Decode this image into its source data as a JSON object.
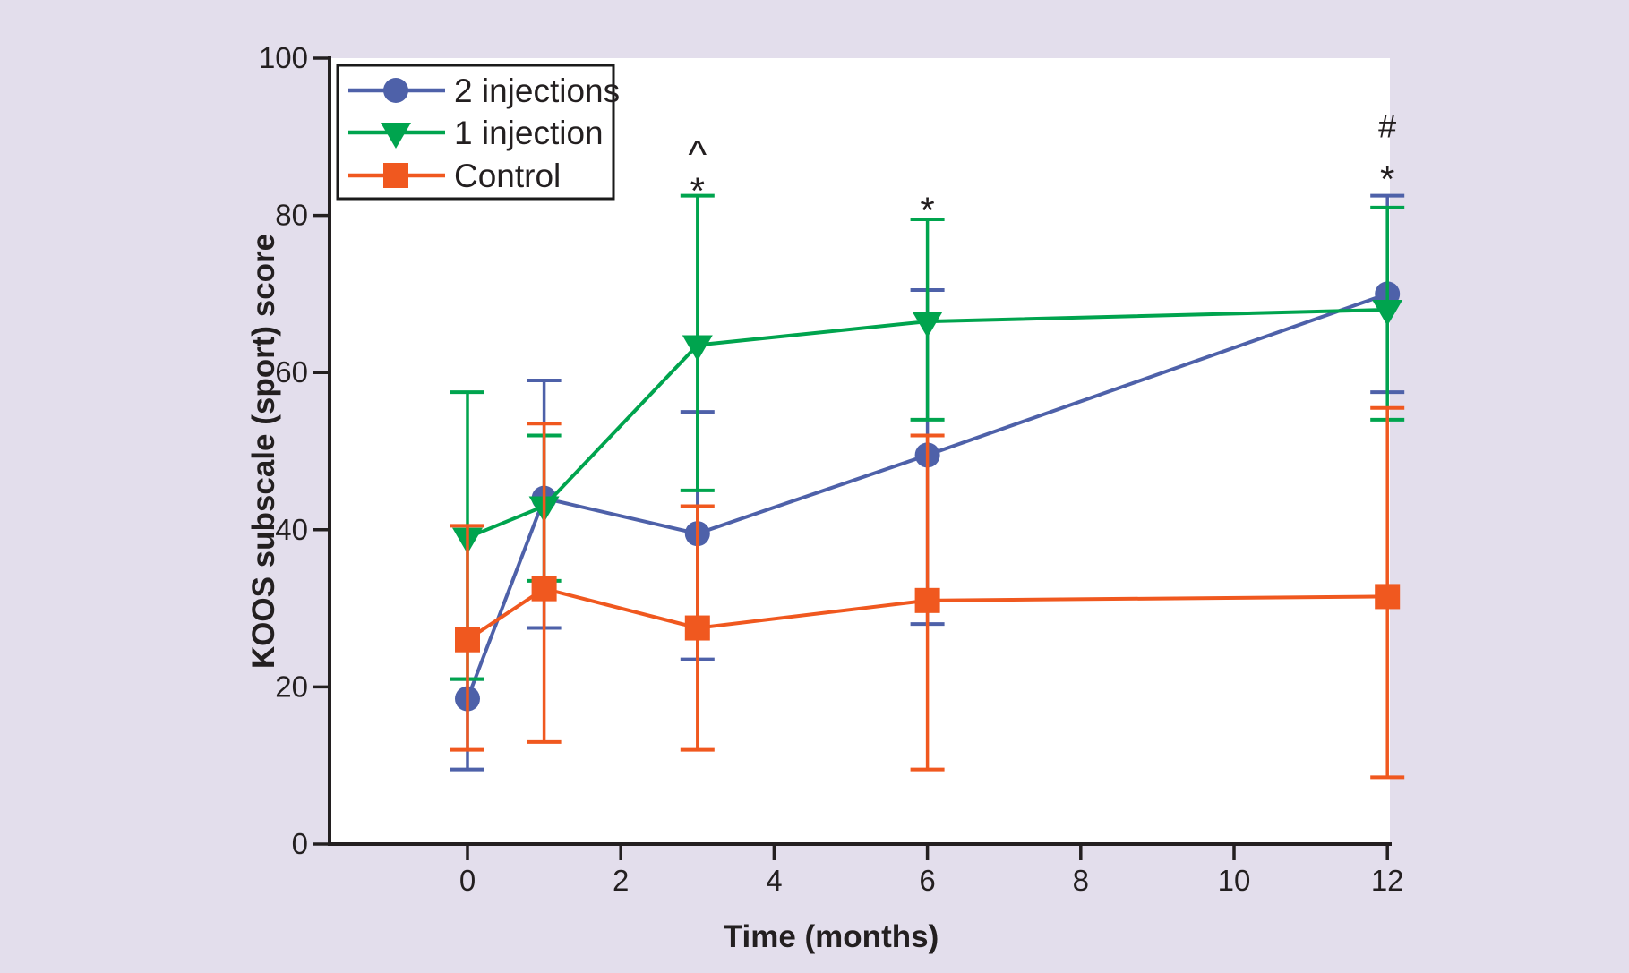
{
  "figure": {
    "kind": "error-bar line chart",
    "background_color": "#E3DEEC",
    "plot_background_color": "#FFFFFF",
    "axis_color": "#231F20",
    "text_color": "#231F20"
  },
  "chart_data": {
    "type": "line",
    "title": "",
    "xlabel": "Time (months)",
    "ylabel": "KOOS subscale (sport) score",
    "x_ticks": [
      0,
      2,
      4,
      6,
      8,
      10,
      12
    ],
    "y_ticks": [
      0,
      20,
      40,
      60,
      80,
      100
    ],
    "xlim": [
      -1.8,
      12.05
    ],
    "ylim": [
      0,
      100
    ],
    "grid": false,
    "legend_position": "top-left",
    "x": [
      0,
      1,
      3,
      6,
      12
    ],
    "series": [
      {
        "name": "2 injections",
        "color": "#4E61A9",
        "marker": "circle",
        "values": [
          18.5,
          44,
          39.5,
          49.5,
          70
        ],
        "err_low": [
          9.5,
          27.5,
          23.5,
          28,
          57.5
        ],
        "err_high": [
          21,
          59,
          55,
          70.5,
          82.5
        ]
      },
      {
        "name": "1 injection",
        "color": "#00A44E",
        "marker": "triangle-down",
        "values": [
          39,
          43,
          63.5,
          66.5,
          68
        ],
        "err_low": [
          21,
          33.5,
          45,
          54,
          54
        ],
        "err_high": [
          57.5,
          52,
          82.5,
          79.5,
          81
        ]
      },
      {
        "name": "Control",
        "color": "#F0581F",
        "marker": "square",
        "values": [
          26,
          32.5,
          27.5,
          31,
          31.5
        ],
        "err_low": [
          12,
          13,
          12,
          9.5,
          8.5
        ],
        "err_high": [
          40.5,
          53.5,
          43,
          52,
          55.5
        ]
      }
    ],
    "annotations": [
      {
        "x": 3,
        "y": 89,
        "symbol": "^"
      },
      {
        "x": 3,
        "y": 84,
        "symbol": "*"
      },
      {
        "x": 6,
        "y": 81.5,
        "symbol": "*"
      },
      {
        "x": 12,
        "y": 91.5,
        "symbol": "#"
      },
      {
        "x": 12,
        "y": 85.5,
        "symbol": "*"
      }
    ]
  }
}
